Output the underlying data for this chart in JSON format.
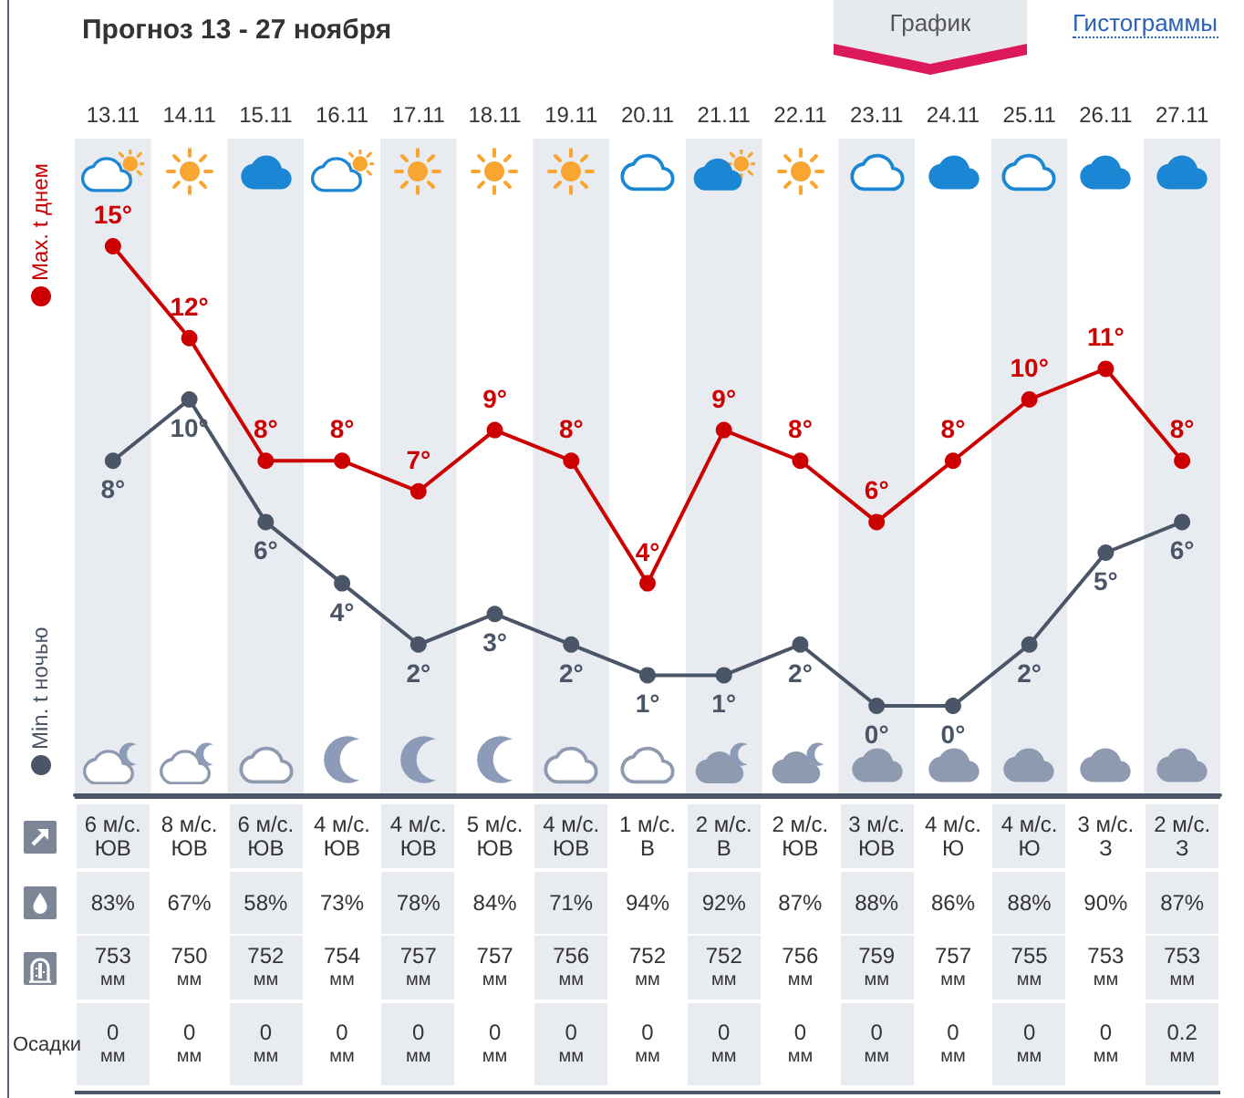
{
  "chart_data": {
    "type": "line",
    "title": "Прогноз 13 - 27 ноября",
    "categories": [
      "13.11",
      "14.11",
      "15.11",
      "16.11",
      "17.11",
      "18.11",
      "19.11",
      "20.11",
      "21.11",
      "22.11",
      "23.11",
      "24.11",
      "25.11",
      "26.11",
      "27.11"
    ],
    "series": [
      {
        "name": "Max. t днем",
        "color": "#cc0000",
        "values": [
          15,
          12,
          8,
          8,
          7,
          9,
          8,
          4,
          9,
          8,
          6,
          8,
          10,
          11,
          8
        ],
        "value_labels": [
          "15°",
          "12°",
          "8°",
          "8°",
          "7°",
          "9°",
          "8°",
          "4°",
          "9°",
          "8°",
          "6°",
          "8°",
          "10°",
          "11°",
          "8°"
        ]
      },
      {
        "name": "Min. t ночью",
        "color": "#4a5568",
        "values": [
          8,
          10,
          6,
          4,
          2,
          3,
          2,
          1,
          1,
          2,
          0,
          0,
          2,
          5,
          6
        ],
        "value_labels": [
          "8°",
          "10°",
          "6°",
          "4°",
          "2°",
          "3°",
          "2°",
          "1°",
          "1°",
          "2°",
          "0°",
          "0°",
          "2°",
          "5°",
          "6°"
        ]
      }
    ],
    "marker": "circle",
    "line_style": "solid",
    "legend": "left",
    "annotations": [
      "График",
      "Гистограммы",
      "Осадки",
      "6 м/с.\nЮВ",
      "8 м/с.\nЮВ",
      "6 м/с.\nЮВ",
      "4 м/с.\nЮВ",
      "4 м/с.\nЮВ",
      "5 м/с.\nЮВ",
      "4 м/с.\nЮВ",
      "1 м/с.\nВ",
      "2 м/с.\nВ",
      "2 м/с.\nЮВ",
      "3 м/с.\nЮВ",
      "4 м/с.\nЮ",
      "4 м/с.\nЮ",
      "3 м/с.\nЗ",
      "2 м/с.\nЗ",
      "83%",
      "67%",
      "58%",
      "73%",
      "78%",
      "84%",
      "71%",
      "94%",
      "92%",
      "87%",
      "88%",
      "86%",
      "88%",
      "90%",
      "87%",
      "753\nмм",
      "750\nмм",
      "752\nмм",
      "754\nмм",
      "757\nмм",
      "757\nмм",
      "756\nмм",
      "752\nмм",
      "752\nмм",
      "756\nмм",
      "759\nмм",
      "757\nмм",
      "755\nмм",
      "753\nмм",
      "753\nмм",
      "0\nмм",
      "0\nмм",
      "0\nмм",
      "0\nмм",
      "0\nмм",
      "0\nмм",
      "0\nмм",
      "0\nмм",
      "0\nмм",
      "0\nмм",
      "0\nмм",
      "0\nмм",
      "0\nмм",
      "0\nмм",
      "0.2\nмм"
    ]
  }
}
